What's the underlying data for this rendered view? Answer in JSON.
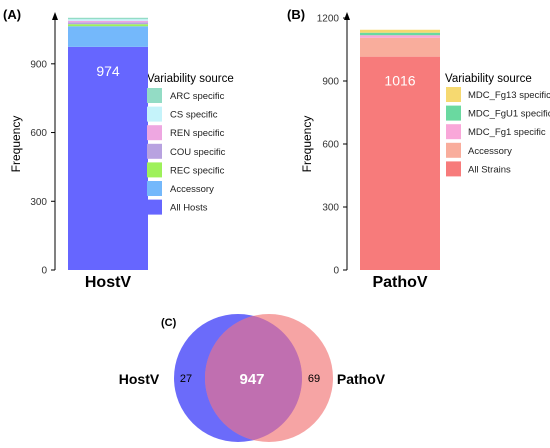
{
  "panels": {
    "a_label": "(A)",
    "b_label": "(B)",
    "c_label": "(C)"
  },
  "chart_data": [
    {
      "type": "bar",
      "stacked": true,
      "categories": [
        "HostV"
      ],
      "ylabel": "Frequency",
      "ylim": [
        0,
        1100
      ],
      "yticks": [
        0,
        300,
        600,
        900
      ],
      "legend_title": "Variability source",
      "series": [
        {
          "name": "All Hosts",
          "values": [
            974
          ],
          "color": "#6666ff",
          "data_label": "974"
        },
        {
          "name": "Accessory",
          "values": [
            90
          ],
          "color": "#74b8fb"
        },
        {
          "name": "REC specific",
          "values": [
            9
          ],
          "color": "#9ef15a"
        },
        {
          "name": "COU specific",
          "values": [
            8
          ],
          "color": "#b8a2e0"
        },
        {
          "name": "REN specific",
          "values": [
            7
          ],
          "color": "#eea7e1"
        },
        {
          "name": "CS specific",
          "values": [
            7
          ],
          "color": "#c5f3fa"
        },
        {
          "name": "ARC specific",
          "values": [
            6
          ],
          "color": "#93dcc5"
        }
      ]
    },
    {
      "type": "bar",
      "stacked": true,
      "categories": [
        "PathoV"
      ],
      "ylabel": "Frequency",
      "ylim": [
        0,
        1200
      ],
      "yticks": [
        0,
        300,
        600,
        900,
        1200
      ],
      "legend_title": "Variability source",
      "series": [
        {
          "name": "All Strains",
          "values": [
            1016
          ],
          "color": "#f77b7b",
          "data_label": "1016"
        },
        {
          "name": "Accessory",
          "values": [
            90
          ],
          "color": "#f9ad9c"
        },
        {
          "name": "MDC_Fg1 specific",
          "values": [
            12
          ],
          "color": "#f9a7d9"
        },
        {
          "name": "MDC_FgU1 specific",
          "values": [
            12
          ],
          "color": "#6ad9a0"
        },
        {
          "name": "MDC_Fg13 specific",
          "values": [
            14
          ],
          "color": "#f6d970"
        }
      ]
    },
    {
      "type": "venn",
      "sets": [
        {
          "name": "HostV",
          "only": 27,
          "color": "#6b6bfa"
        },
        {
          "name": "PathoV",
          "only": 69,
          "color": "#f48a8a"
        }
      ],
      "intersection": 947,
      "intersection_color": "#c06fb0"
    }
  ]
}
